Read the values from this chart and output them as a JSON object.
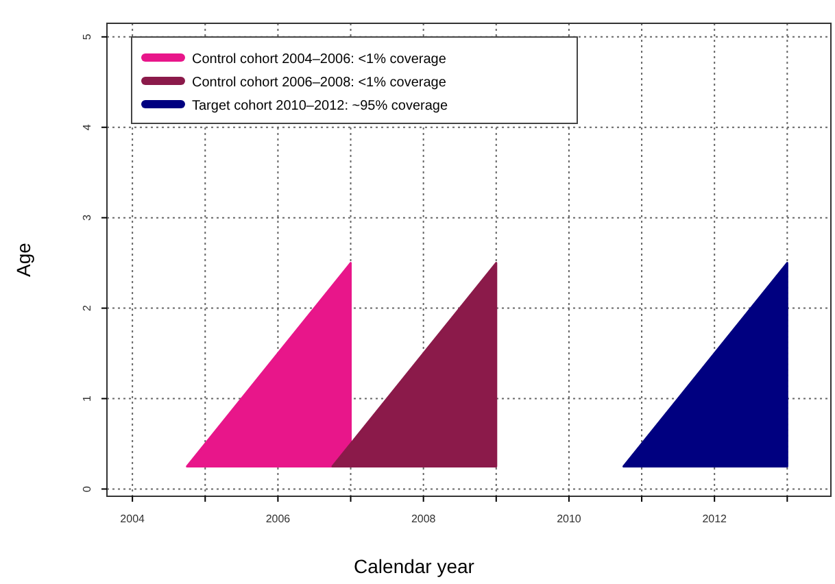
{
  "chart_data": {
    "type": "area",
    "xlabel": "Calendar year",
    "ylabel": "Age",
    "xlim": [
      2003.65,
      2013.6
    ],
    "ylim": [
      -0.08,
      5.15
    ],
    "xticks": [
      2004,
      {
        "value": 2005,
        "label": null
      },
      2006,
      {
        "value": 2007,
        "label": null
      },
      2008,
      {
        "value": 2009,
        "label": null
      },
      2010,
      {
        "value": 2011,
        "label": null
      },
      2012,
      {
        "value": 2013,
        "label": null
      }
    ],
    "yticks": [
      0,
      1,
      2,
      3,
      4,
      5
    ],
    "grid": true,
    "legend": "top left",
    "series": [
      {
        "name": "Control cohort 2004–2006: <1% coverage",
        "color": "#e8168a",
        "x": [
          2004.75,
          2007,
          2007
        ],
        "values": [
          0.25,
          2.5,
          0.25
        ]
      },
      {
        "name": "Control cohort 2006–2008: <1% coverage",
        "color": "#8b1a4a",
        "x": [
          2006.75,
          2009,
          2009
        ],
        "values": [
          0.25,
          2.5,
          0.25
        ]
      },
      {
        "name": "Target cohort 2010–2012: ~95% coverage",
        "color": "#000080",
        "x": [
          2010.75,
          2013,
          2013
        ],
        "values": [
          0.25,
          2.5,
          0.25
        ]
      }
    ]
  }
}
